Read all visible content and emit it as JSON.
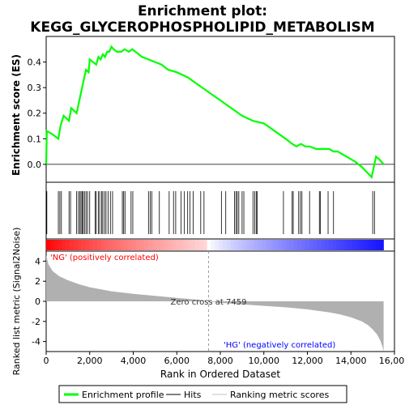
{
  "chart_data": {
    "type": "line",
    "title_line1": "Enrichment plot:",
    "title_line2": "KEGG_GLYCEROPHOSPHOLIPID_METABOLISM",
    "xlabel": "Rank in Ordered Dataset",
    "ylabel_top": "Enrichment score (ES)",
    "ylabel_bottom": "Ranked list metric (Signal2Noise)",
    "xlim": [
      0,
      16000
    ],
    "x_ticks": [
      0,
      2000,
      4000,
      6000,
      8000,
      10000,
      12000,
      14000,
      16000
    ],
    "x_tick_labels": [
      "0",
      "2,000",
      "4,000",
      "6,000",
      "8,000",
      "10,000",
      "12,000",
      "14,000",
      "16,000"
    ],
    "es_ylim": [
      -0.07,
      0.5
    ],
    "es_ticks": [
      0.0,
      0.1,
      0.2,
      0.3,
      0.4
    ],
    "es_tick_labels": [
      "0.0",
      "0.1",
      "0.2",
      "0.3",
      "0.4"
    ],
    "metric_ylim": [
      -5,
      5
    ],
    "metric_ticks": [
      -4,
      -2,
      0,
      2,
      4
    ],
    "metric_tick_labels": [
      "-4",
      "-2",
      "0",
      "2",
      "4"
    ],
    "ranking_length": 15500,
    "zero_cross_rank": 7459,
    "zero_cross_text": "Zero cross at 7459",
    "pos_label": "'NG' (positively correlated)",
    "neg_label": "'HG' (negatively correlated)",
    "colors": {
      "es_line": "#00ff00",
      "hits": "#000000",
      "metric_fill": "#b0b0b0",
      "pos_label": "#ff0000",
      "neg_label": "#0000ff",
      "bar_red": "#ff0000",
      "bar_blue": "#0000ff"
    },
    "legend": {
      "items": [
        "Enrichment profile",
        "Hits",
        "Ranking metric scores"
      ],
      "placement": "bottom"
    },
    "enrichment_profile": {
      "x": [
        0,
        30,
        250,
        560,
        660,
        800,
        1050,
        1150,
        1400,
        1500,
        1600,
        1700,
        1830,
        1950,
        2000,
        2300,
        2400,
        2500,
        2600,
        2700,
        2800,
        2900,
        3000,
        3100,
        3250,
        3450,
        3600,
        3800,
        3950,
        4100,
        4400,
        4700,
        5000,
        5300,
        5600,
        6000,
        6500,
        7000,
        7500,
        8000,
        8500,
        9000,
        9500,
        10000,
        10500,
        11000,
        11300,
        11500,
        11700,
        11900,
        12100,
        12400,
        12600,
        12800,
        13000,
        13200,
        13400,
        13600,
        13800,
        14000,
        14200,
        14500,
        14950,
        15050,
        15150,
        15300,
        15500
      ],
      "y": [
        0.0,
        0.13,
        0.12,
        0.1,
        0.15,
        0.19,
        0.17,
        0.22,
        0.2,
        0.24,
        0.28,
        0.32,
        0.37,
        0.36,
        0.41,
        0.39,
        0.42,
        0.41,
        0.43,
        0.42,
        0.44,
        0.44,
        0.46,
        0.45,
        0.44,
        0.44,
        0.45,
        0.44,
        0.45,
        0.44,
        0.42,
        0.41,
        0.4,
        0.39,
        0.37,
        0.36,
        0.34,
        0.31,
        0.28,
        0.25,
        0.22,
        0.19,
        0.17,
        0.16,
        0.13,
        0.1,
        0.08,
        0.07,
        0.08,
        0.07,
        0.07,
        0.06,
        0.06,
        0.06,
        0.06,
        0.05,
        0.05,
        0.04,
        0.03,
        0.02,
        0.01,
        -0.01,
        -0.05,
        -0.01,
        0.03,
        0.02,
        0.0
      ]
    },
    "hit_ranks": [
      30,
      560,
      630,
      700,
      1050,
      1120,
      1400,
      1480,
      1540,
      1600,
      1650,
      1700,
      1760,
      1830,
      1900,
      2000,
      2250,
      2300,
      2400,
      2460,
      2550,
      2600,
      2680,
      2750,
      2850,
      2950,
      3050,
      3500,
      3560,
      3620,
      3900,
      3980,
      4700,
      4780,
      4850,
      5200,
      5650,
      5850,
      5950,
      6200,
      6350,
      6500,
      6600,
      6750,
      7100,
      7250,
      8050,
      8250,
      8650,
      8720,
      8780,
      8850,
      9000,
      9080,
      9500,
      9580,
      9650,
      9700,
      10900,
      11300,
      11350,
      11600,
      11680,
      11750,
      12100,
      12550,
      12600,
      12950,
      13200,
      15000,
      15080
    ],
    "metric_profile": {
      "x": [
        0,
        100,
        300,
        600,
        1000,
        1500,
        2000,
        2500,
        3000,
        4000,
        5000,
        6000,
        7000,
        7459,
        8000,
        9000,
        10000,
        11000,
        12000,
        12500,
        13000,
        13500,
        14000,
        14500,
        14800,
        15000,
        15200,
        15350,
        15450,
        15500
      ],
      "y": [
        4.6,
        3.7,
        3.0,
        2.5,
        2.1,
        1.7,
        1.4,
        1.2,
        1.0,
        0.75,
        0.55,
        0.35,
        0.15,
        0.0,
        -0.15,
        -0.3,
        -0.45,
        -0.6,
        -0.8,
        -0.95,
        -1.1,
        -1.3,
        -1.6,
        -2.0,
        -2.4,
        -2.8,
        -3.3,
        -3.9,
        -4.5,
        -5.0
      ]
    }
  }
}
